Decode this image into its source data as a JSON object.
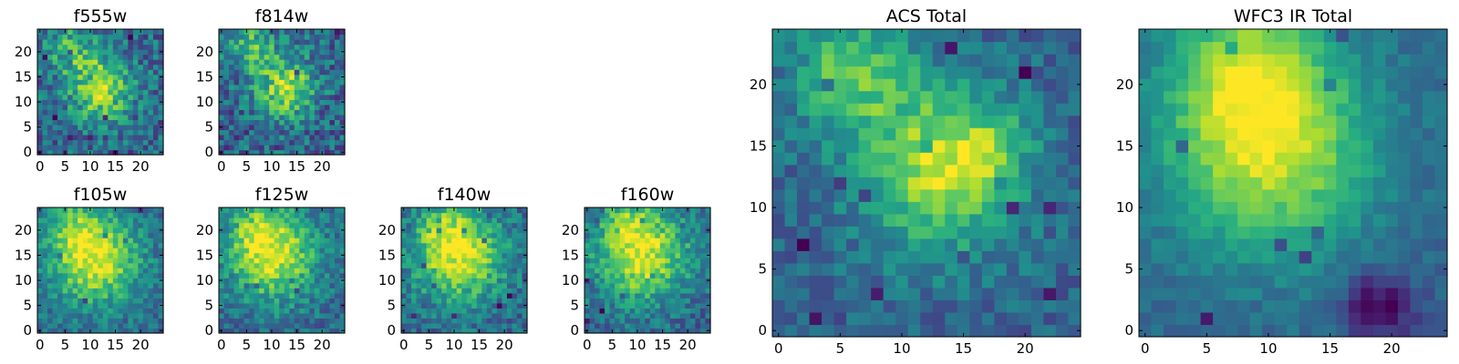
{
  "figure": {
    "panels": [
      {
        "id": "f555w",
        "title": "f555w"
      },
      {
        "id": "f814w",
        "title": "f814w"
      },
      {
        "id": "f105w",
        "title": "f105w"
      },
      {
        "id": "f125w",
        "title": "f125w"
      },
      {
        "id": "f140w",
        "title": "f140w"
      },
      {
        "id": "f160w",
        "title": "f160w"
      },
      {
        "id": "acs",
        "title": "ACS Total"
      },
      {
        "id": "wfc3",
        "title": "WFC3 IR Total"
      }
    ]
  },
  "chart_data": [
    {
      "type": "heatmap",
      "title": "f555w",
      "grid_size": [
        25,
        25
      ],
      "x_range": [
        0,
        24
      ],
      "y_range": [
        0,
        24
      ],
      "x_ticks": [
        0,
        5,
        10,
        15,
        20
      ],
      "y_ticks": [
        0,
        5,
        10,
        15,
        20
      ],
      "colormap": "viridis",
      "features": [
        {
          "kind": "blob",
          "center": [
            12,
            13
          ],
          "sigma": 4.5,
          "amplitude": 0.55
        },
        {
          "kind": "blob",
          "center": [
            6,
            21
          ],
          "sigma": 3.5,
          "amplitude": 0.3
        }
      ],
      "noise": 0.22
    },
    {
      "type": "heatmap",
      "title": "f814w",
      "grid_size": [
        25,
        25
      ],
      "x_range": [
        0,
        24
      ],
      "y_range": [
        0,
        24
      ],
      "x_ticks": [
        0,
        5,
        10,
        15,
        20
      ],
      "y_ticks": [
        0,
        5,
        10,
        15,
        20
      ],
      "colormap": "viridis",
      "features": [
        {
          "kind": "blob",
          "center": [
            13,
            13
          ],
          "sigma": 4,
          "amplitude": 0.55
        },
        {
          "kind": "blob",
          "center": [
            6,
            21
          ],
          "sigma": 3.5,
          "amplitude": 0.35
        }
      ],
      "noise": 0.22
    },
    {
      "type": "heatmap",
      "title": "f105w",
      "grid_size": [
        25,
        25
      ],
      "x_range": [
        0,
        24
      ],
      "y_range": [
        0,
        24
      ],
      "x_ticks": [
        0,
        5,
        10,
        15,
        20
      ],
      "y_ticks": [
        0,
        5,
        10,
        15,
        20
      ],
      "colormap": "viridis",
      "features": [
        {
          "kind": "blob",
          "center": [
            11,
            14
          ],
          "sigma": 6.5,
          "amplitude": 0.6
        },
        {
          "kind": "blob",
          "center": [
            7,
            21
          ],
          "sigma": 4,
          "amplitude": 0.25
        }
      ],
      "noise": 0.15
    },
    {
      "type": "heatmap",
      "title": "f125w",
      "grid_size": [
        25,
        25
      ],
      "x_range": [
        0,
        24
      ],
      "y_range": [
        0,
        24
      ],
      "x_ticks": [
        0,
        5,
        10,
        15,
        20
      ],
      "y_ticks": [
        0,
        5,
        10,
        15,
        20
      ],
      "colormap": "viridis",
      "features": [
        {
          "kind": "blob",
          "center": [
            10,
            15
          ],
          "sigma": 6.5,
          "amplitude": 0.6
        },
        {
          "kind": "blob",
          "center": [
            7,
            21
          ],
          "sigma": 4,
          "amplitude": 0.2
        }
      ],
      "noise": 0.16
    },
    {
      "type": "heatmap",
      "title": "f140w",
      "grid_size": [
        25,
        25
      ],
      "x_range": [
        0,
        24
      ],
      "y_range": [
        0,
        24
      ],
      "x_ticks": [
        0,
        5,
        10,
        15,
        20
      ],
      "y_ticks": [
        0,
        5,
        10,
        15,
        20
      ],
      "colormap": "viridis",
      "features": [
        {
          "kind": "blob",
          "center": [
            11,
            15
          ],
          "sigma": 6.5,
          "amplitude": 0.6
        },
        {
          "kind": "blob",
          "center": [
            8,
            21
          ],
          "sigma": 4,
          "amplitude": 0.2
        }
      ],
      "noise": 0.17
    },
    {
      "type": "heatmap",
      "title": "f160w",
      "grid_size": [
        25,
        25
      ],
      "x_range": [
        0,
        24
      ],
      "y_range": [
        0,
        24
      ],
      "x_ticks": [
        0,
        5,
        10,
        15,
        20
      ],
      "y_ticks": [
        0,
        5,
        10,
        15,
        20
      ],
      "colormap": "viridis",
      "features": [
        {
          "kind": "blob",
          "center": [
            11,
            15
          ],
          "sigma": 6.5,
          "amplitude": 0.62
        },
        {
          "kind": "blob",
          "center": [
            8,
            22
          ],
          "sigma": 4,
          "amplitude": 0.2
        }
      ],
      "noise": 0.17
    },
    {
      "type": "heatmap",
      "title": "ACS Total",
      "grid_size": [
        25,
        25
      ],
      "x_range": [
        0,
        24
      ],
      "y_range": [
        0,
        24
      ],
      "x_ticks": [
        0,
        5,
        10,
        15,
        20
      ],
      "y_ticks": [
        0,
        5,
        10,
        15,
        20
      ],
      "colormap": "viridis",
      "features": [
        {
          "kind": "blob",
          "center": [
            13,
            13
          ],
          "sigma": 4.5,
          "amplitude": 0.55
        },
        {
          "kind": "blob",
          "center": [
            6,
            21
          ],
          "sigma": 3.5,
          "amplitude": 0.4
        },
        {
          "kind": "blob",
          "center": [
            17,
            15
          ],
          "sigma": 2.5,
          "amplitude": 0.2
        }
      ],
      "noise": 0.13
    },
    {
      "type": "heatmap",
      "title": "WFC3 IR Total",
      "grid_size": [
        25,
        25
      ],
      "x_range": [
        0,
        24
      ],
      "y_range": [
        0,
        24
      ],
      "x_ticks": [
        0,
        5,
        10,
        15,
        20
      ],
      "y_ticks": [
        0,
        5,
        10,
        15,
        20
      ],
      "colormap": "viridis",
      "features": [
        {
          "kind": "blob",
          "center": [
            10,
            15
          ],
          "sigma": 6,
          "amplitude": 0.6
        },
        {
          "kind": "blob",
          "center": [
            8,
            22
          ],
          "sigma": 4,
          "amplitude": 0.35
        },
        {
          "kind": "blob",
          "center": [
            19,
            2
          ],
          "sigma": 2,
          "amplitude": -0.35
        }
      ],
      "noise": 0.07
    }
  ]
}
